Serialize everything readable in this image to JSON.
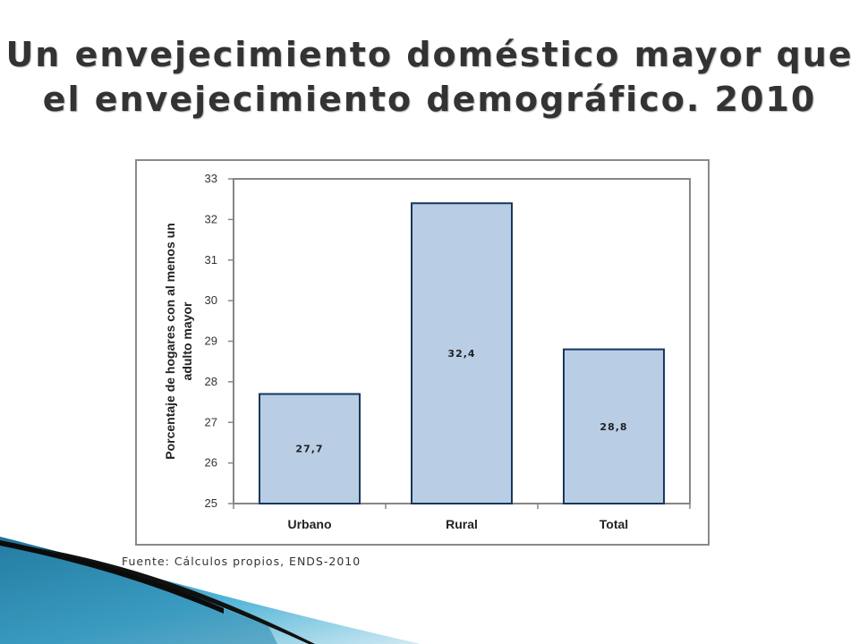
{
  "slide": {
    "title_line1": "Un envejecimiento doméstico mayor que",
    "title_line2": "el envejecimiento demográfico. 2010",
    "source": "Fuente: Cálculos propios, ENDS-2010"
  },
  "colors": {
    "bar_fill": "#b9cde5",
    "bar_stroke": "#17375e",
    "axis": "#868686",
    "text": "#333333"
  },
  "chart_data": {
    "type": "bar",
    "categories": [
      "Urbano",
      "Rural",
      "Total"
    ],
    "values": [
      27.7,
      32.4,
      28.8
    ],
    "data_labels": [
      "27,7",
      "32,4",
      "28,8"
    ],
    "title": "",
    "xlabel": "",
    "ylabel": "Porcentaje de hogares con al menos un adulto mayor",
    "ylabel_lines": [
      "Porcentaje de hogares con al menos un",
      "adulto mayor"
    ],
    "ylim": [
      25,
      33
    ],
    "yticks": [
      25,
      26,
      27,
      28,
      29,
      30,
      31,
      32,
      33
    ],
    "grid": false,
    "legend": false
  }
}
